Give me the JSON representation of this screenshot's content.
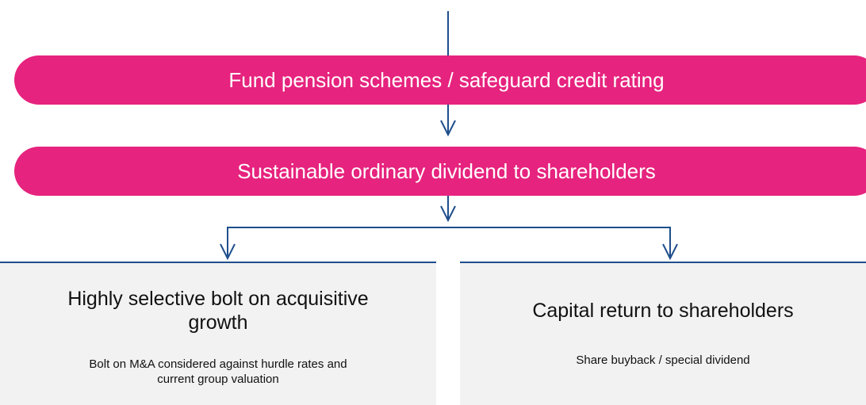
{
  "steps": [
    {
      "label": "Fund pension schemes / safeguard credit rating"
    },
    {
      "label": "Sustainable ordinary dividend to shareholders"
    }
  ],
  "branches": [
    {
      "title": "Highly selective bolt on acquisitive growth",
      "description": "Bolt on M&A considered against hurdle rates and current group valuation"
    },
    {
      "title": "Capital return to shareholders",
      "description": "Share buyback / special dividend"
    }
  ]
}
